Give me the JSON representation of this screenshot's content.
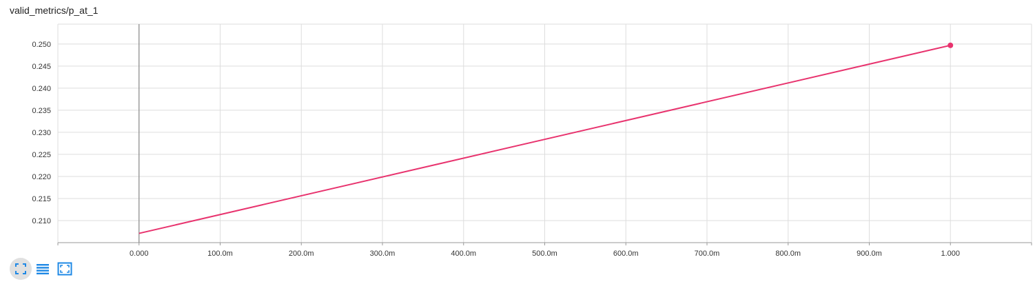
{
  "card": {
    "title": "valid_metrics/p_at_1"
  },
  "colors": {
    "series": "#e8336e",
    "grid": "#dddddd",
    "axis": "#999999",
    "zero_line": "#888888",
    "toolbar_icon": "#1e88e5"
  },
  "toolbar": {
    "buttons": [
      {
        "icon": "fit-domain-icon",
        "active": true
      },
      {
        "icon": "toggle-log-scale-icon",
        "active": false
      },
      {
        "icon": "expand-chart-icon",
        "active": false
      }
    ]
  },
  "chart_data": {
    "type": "line",
    "title": "valid_metrics/p_at_1",
    "xlabel": "",
    "ylabel": "",
    "xlim": [
      -0.1,
      1.1
    ],
    "ylim": [
      0.205,
      0.2545
    ],
    "x_ticks": [
      0,
      0.1,
      0.2,
      0.3,
      0.4,
      0.5,
      0.6,
      0.7,
      0.8,
      0.9,
      1.0
    ],
    "x_tick_labels": [
      "0.000",
      "100.0m",
      "200.0m",
      "300.0m",
      "400.0m",
      "500.0m",
      "600.0m",
      "700.0m",
      "800.0m",
      "900.0m",
      "1.000"
    ],
    "y_ticks": [
      0.21,
      0.215,
      0.22,
      0.225,
      0.23,
      0.235,
      0.24,
      0.245,
      0.25
    ],
    "y_tick_labels": [
      "0.210",
      "0.215",
      "0.220",
      "0.225",
      "0.230",
      "0.235",
      "0.240",
      "0.245",
      "0.250"
    ],
    "grid": true,
    "series": [
      {
        "x": [
          0,
          1
        ],
        "y": [
          0.2071,
          0.2497
        ],
        "marker_last": true
      }
    ]
  }
}
